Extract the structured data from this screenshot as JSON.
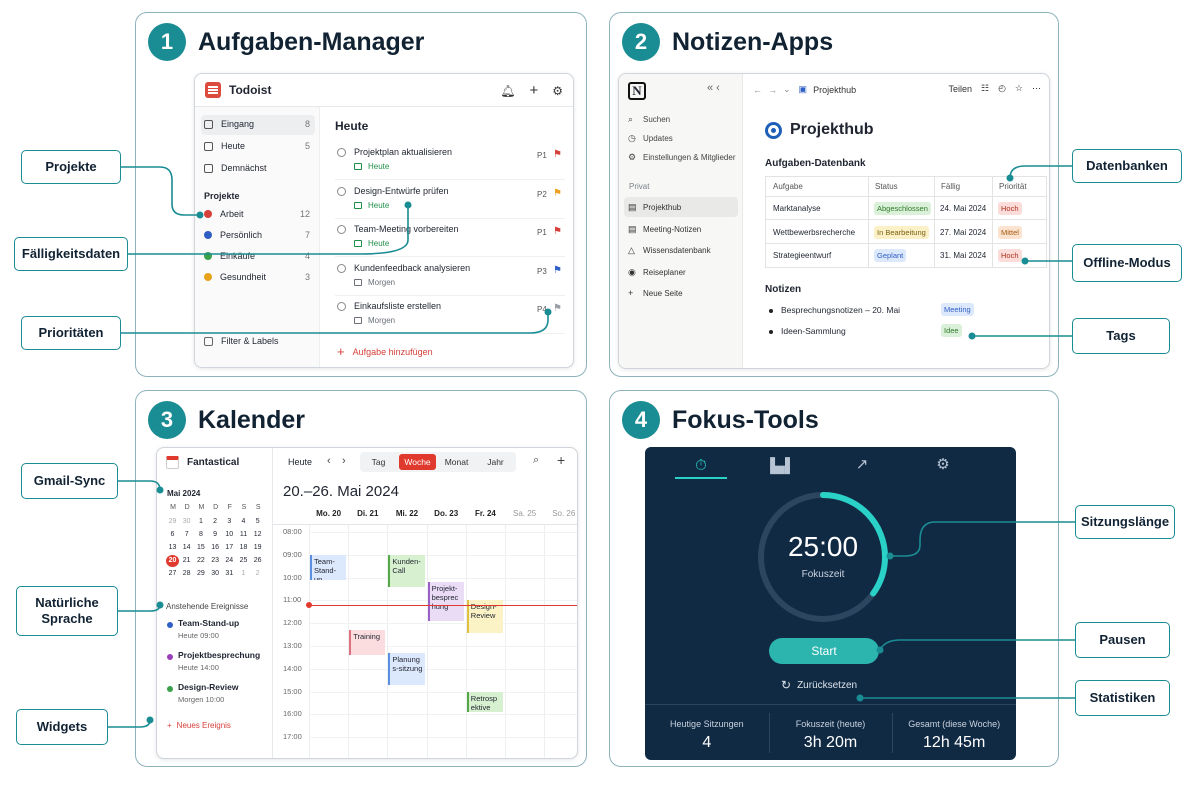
{
  "sections": [
    {
      "num": "1",
      "title": "Aufgaben-Manager"
    },
    {
      "num": "2",
      "title": "Notizen-Apps"
    },
    {
      "num": "3",
      "title": "Kalender"
    },
    {
      "num": "4",
      "title": "Fokus-Tools"
    }
  ],
  "callouts": {
    "projekte": "Projekte",
    "faelligkeitsdaten": "Fälligkeitsdaten",
    "prioritaeten": "Prioritäten",
    "datenbanken": "Datenbanken",
    "offline": "Offline-Modus",
    "tags": "Tags",
    "gmail": "Gmail-Sync",
    "natuerlich": "Natürliche Sprache",
    "widgets": "Widgets",
    "sitzungslaenge": "Sitzungslänge",
    "pausen": "Pausen",
    "statistiken": "Statistiken"
  },
  "todoist": {
    "app_name": "Todoist",
    "nav": [
      {
        "label": "Eingang",
        "count": "8"
      },
      {
        "label": "Heute",
        "count": "5"
      },
      {
        "label": "Demnächst",
        "count": ""
      }
    ],
    "projects_header": "Projekte",
    "projects": [
      {
        "label": "Arbeit",
        "count": "12",
        "color": "#d6403a"
      },
      {
        "label": "Persönlich",
        "count": "7",
        "color": "#2f5fc4"
      },
      {
        "label": "Einkäufe",
        "count": "4",
        "color": "#3aa14a"
      },
      {
        "label": "Gesundheit",
        "count": "3",
        "color": "#e8a21b"
      }
    ],
    "filter_label": "Filter & Labels",
    "main_title": "Heute",
    "tasks": [
      {
        "title": "Projektplan aktualisieren",
        "date": "Heute",
        "priority": "P1",
        "flag_color": "#d6403a",
        "date_color": "#1f8f4a"
      },
      {
        "title": "Design-Entwürfe prüfen",
        "date": "Heute",
        "priority": "P2",
        "flag_color": "#f0a020",
        "date_color": "#1f8f4a"
      },
      {
        "title": "Team-Meeting vorbereiten",
        "date": "Heute",
        "priority": "P1",
        "flag_color": "#d6403a",
        "date_color": "#1f8f4a"
      },
      {
        "title": "Kundenfeedback analysieren",
        "date": "Morgen",
        "priority": "P3",
        "flag_color": "#2f5fc4",
        "date_color": "#6b7079"
      },
      {
        "title": "Einkaufsliste erstellen",
        "date": "Morgen",
        "priority": "P4",
        "flag_color": "#9aa0a6",
        "date_color": "#6b7079"
      }
    ],
    "add_task": "Aufgabe hinzufügen"
  },
  "notion": {
    "logo": "N",
    "breadcrumb": "Projekthub",
    "share": "Teilen",
    "sidebar": [
      {
        "label": "Suchen"
      },
      {
        "label": "Updates"
      },
      {
        "label": "Einstellungen & Mitglieder"
      }
    ],
    "private_header": "Privat",
    "pages": [
      {
        "label": "Projekthub"
      },
      {
        "label": "Meeting-Notizen"
      },
      {
        "label": "Wissensdatenbank"
      },
      {
        "label": "Reiseplaner"
      },
      {
        "label": "Neue Seite"
      }
    ],
    "page_title": "Projekthub",
    "db_title": "Aufgaben-Datenbank",
    "db_headers": [
      "Aufgabe",
      "Status",
      "Fällig",
      "Priorität"
    ],
    "db_rows": [
      {
        "task": "Marktanalyse",
        "status": "Abgeschlossen",
        "due": "24. Mai 2024",
        "prio": "Hoch"
      },
      {
        "task": "Wettbewerbsrecherche",
        "status": "In Bearbeitung",
        "due": "27. Mai 2024",
        "prio": "Mittel"
      },
      {
        "task": "Strategieentwurf",
        "status": "Geplant",
        "due": "31. Mai 2024",
        "prio": "Hoch"
      }
    ],
    "notes_title": "Notizen",
    "notes": [
      {
        "text": "Besprechungsnotizen – 20. Mai",
        "tag": "Meeting"
      },
      {
        "text": "Ideen-Sammlung",
        "tag": "Idee"
      }
    ]
  },
  "calendar": {
    "app_name": "Fantastical",
    "month": "Mai 2024",
    "weekday_initials": [
      "M",
      "D",
      "M",
      "D",
      "F",
      "S",
      "S"
    ],
    "weeks": [
      [
        "29",
        "30",
        "1",
        "2",
        "3",
        "4",
        "5"
      ],
      [
        "6",
        "7",
        "8",
        "9",
        "10",
        "11",
        "12"
      ],
      [
        "13",
        "14",
        "15",
        "16",
        "17",
        "18",
        "19"
      ],
      [
        "20",
        "21",
        "22",
        "23",
        "24",
        "25",
        "26"
      ],
      [
        "27",
        "28",
        "29",
        "30",
        "31",
        "1",
        "2"
      ]
    ],
    "today": "20",
    "upcoming_header": "Anstehende Ereignisse",
    "upcoming": [
      {
        "title": "Team-Stand-up",
        "time": "Heute 09:00",
        "color": "#2f5fc4"
      },
      {
        "title": "Projektbesprechung",
        "time": "Heute 14:00",
        "color": "#9b3fb8"
      },
      {
        "title": "Design-Review",
        "time": "Morgen 10:00",
        "color": "#3aa14a"
      }
    ],
    "new_event": "Neues Ereignis",
    "toolbar_today": "Heute",
    "views": [
      "Tag",
      "Woche",
      "Monat",
      "Jahr"
    ],
    "active_view": "Woche",
    "range_title": "20.–26. Mai 2024",
    "days": [
      "Mo. 20",
      "Di. 21",
      "Mi. 22",
      "Do. 23",
      "Fr. 24",
      "Sa. 25",
      "So. 26"
    ],
    "hours": [
      "08:00",
      "09:00",
      "10:00",
      "11:00",
      "12:00",
      "13:00",
      "14:00",
      "15:00",
      "16:00",
      "17:00"
    ],
    "events": [
      {
        "title": "Team-Stand-up",
        "day": 0,
        "start": 9.0,
        "end": 10.2,
        "bg": "#dce8fb",
        "border": "#5b8fe0"
      },
      {
        "title": "Kunden-Call",
        "day": 2,
        "start": 9.0,
        "end": 10.5,
        "bg": "#d7f0cf",
        "border": "#52a844"
      },
      {
        "title": "Projekt-besprechung",
        "day": 3,
        "start": 10.2,
        "end": 12.0,
        "bg": "#eadcf5",
        "border": "#9b5fc8"
      },
      {
        "title": "Design-Review",
        "day": 4,
        "start": 11.0,
        "end": 12.5,
        "bg": "#fbf3c6",
        "border": "#e0c040"
      },
      {
        "title": "Training",
        "day": 1,
        "start": 12.3,
        "end": 13.5,
        "bg": "#fbdde0",
        "border": "#e07080"
      },
      {
        "title": "Planungs-sitzung",
        "day": 2,
        "start": 13.3,
        "end": 14.8,
        "bg": "#dce8fb",
        "border": "#5b8fe0"
      },
      {
        "title": "Retrospektive",
        "day": 4,
        "start": 15.0,
        "end": 16.0,
        "bg": "#d7f0cf",
        "border": "#52a844"
      }
    ],
    "now_time": 11.2
  },
  "focus": {
    "timer": "25:00",
    "label": "Fokuszeit",
    "progress": 0.35,
    "start_label": "Start",
    "reset_label": "Zurücksetzen",
    "stats": [
      {
        "label": "Heutige Sitzungen",
        "value": "4"
      },
      {
        "label": "Fokuszeit (heute)",
        "value": "3h 20m"
      },
      {
        "label": "Gesamt (diese Woche)",
        "value": "12h 45m"
      }
    ],
    "tabs": [
      "timer-icon",
      "bar-chart-icon",
      "trend-icon",
      "settings-icon"
    ]
  }
}
